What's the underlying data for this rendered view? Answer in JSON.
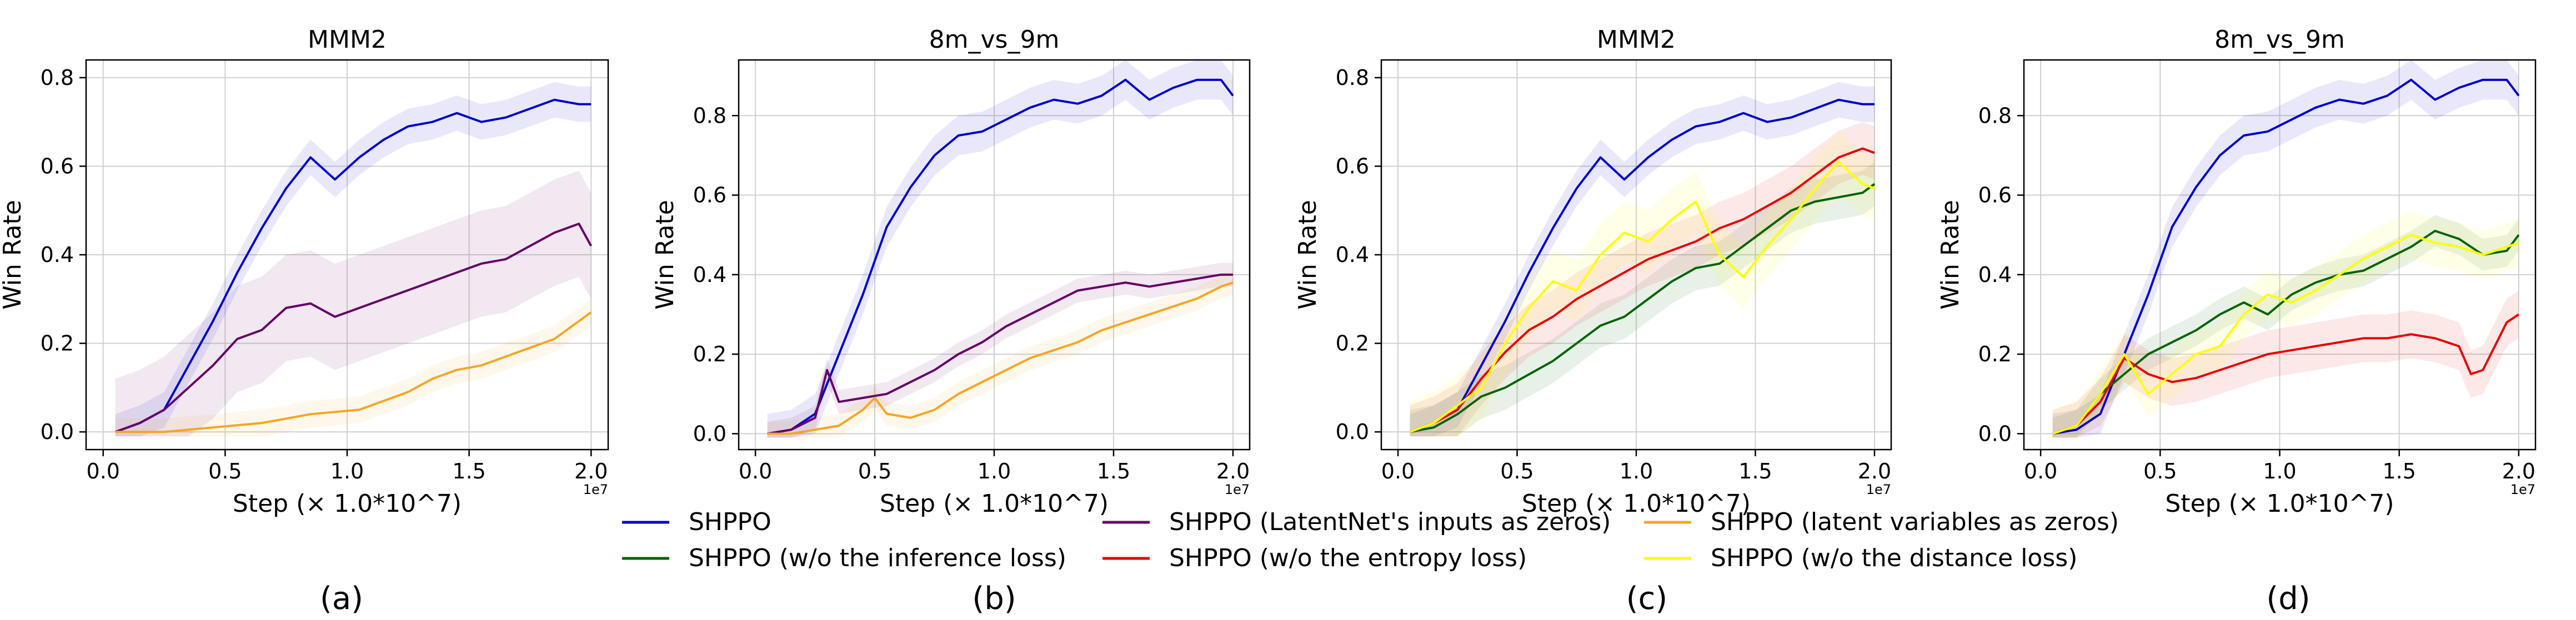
{
  "legend": [
    {
      "name": "SHPPO",
      "color": "#0000cc"
    },
    {
      "name": "SHPPO (w/o the inference loss)",
      "color": "#006400"
    },
    {
      "name": "SHPPO (LatentNet's inputs as zeros)",
      "color": "#660066"
    },
    {
      "name": "SHPPO (w/o the entropy loss)",
      "color": "#e60000"
    },
    {
      "name": "SHPPO (latent variables as zeros)",
      "color": "#f5a623"
    },
    {
      "name": "SHPPO (w/o the distance loss)",
      "color": "#ffff00"
    }
  ],
  "chart_data": [
    {
      "type": "line",
      "caption": "(a)",
      "title": "MMM2",
      "xlabel": "Step (× 1.0*10^7)",
      "ylabel": "Win Rate",
      "x_exponent": "1e7",
      "xlim": [
        -0.07,
        2.07
      ],
      "ylim": [
        -0.04,
        0.84
      ],
      "xticks": [
        "0.0",
        "0.5",
        "1.0",
        "1.5",
        "2.0"
      ],
      "yticks": [
        "0.0",
        "0.2",
        "0.4",
        "0.6",
        "0.8"
      ],
      "series": [
        {
          "name": "SHPPO",
          "color": "#0000cc",
          "band": 0.04,
          "x": [
            0.05,
            0.15,
            0.25,
            0.35,
            0.45,
            0.55,
            0.65,
            0.75,
            0.85,
            0.95,
            1.05,
            1.15,
            1.25,
            1.35,
            1.45,
            1.55,
            1.65,
            1.75,
            1.85,
            1.95,
            2.0
          ],
          "y": [
            0.0,
            0.02,
            0.05,
            0.15,
            0.25,
            0.36,
            0.46,
            0.55,
            0.62,
            0.57,
            0.62,
            0.66,
            0.69,
            0.7,
            0.72,
            0.7,
            0.71,
            0.73,
            0.75,
            0.74,
            0.74
          ]
        },
        {
          "name": "SHPPO (LatentNet's inputs as zeros)",
          "color": "#660066",
          "band": 0.12,
          "x": [
            0.05,
            0.15,
            0.25,
            0.35,
            0.45,
            0.55,
            0.65,
            0.75,
            0.85,
            0.95,
            1.05,
            1.15,
            1.25,
            1.35,
            1.45,
            1.55,
            1.65,
            1.75,
            1.85,
            1.95,
            2.0
          ],
          "y": [
            0.0,
            0.02,
            0.05,
            0.1,
            0.15,
            0.21,
            0.23,
            0.28,
            0.29,
            0.26,
            0.28,
            0.3,
            0.32,
            0.34,
            0.36,
            0.38,
            0.39,
            0.42,
            0.45,
            0.47,
            0.42
          ]
        },
        {
          "name": "SHPPO (latent variables as zeros)",
          "color": "#f5a623",
          "band": 0.03,
          "x": [
            0.05,
            0.15,
            0.25,
            0.35,
            0.45,
            0.55,
            0.65,
            0.75,
            0.85,
            0.95,
            1.05,
            1.15,
            1.25,
            1.35,
            1.45,
            1.55,
            1.65,
            1.75,
            1.85,
            1.95,
            2.0
          ],
          "y": [
            0.0,
            0.0,
            0.0,
            0.005,
            0.01,
            0.015,
            0.02,
            0.03,
            0.04,
            0.045,
            0.05,
            0.07,
            0.09,
            0.12,
            0.14,
            0.15,
            0.17,
            0.19,
            0.21,
            0.25,
            0.27
          ]
        }
      ]
    },
    {
      "type": "line",
      "caption": "(b)",
      "title": "8m_vs_9m",
      "xlabel": "Step (× 1.0*10^7)",
      "ylabel": "Win Rate",
      "x_exponent": "1e7",
      "xlim": [
        -0.07,
        2.07
      ],
      "ylim": [
        -0.04,
        0.94
      ],
      "xticks": [
        "0.0",
        "0.5",
        "1.0",
        "1.5",
        "2.0"
      ],
      "yticks": [
        "0.0",
        "0.2",
        "0.4",
        "0.6",
        "0.8"
      ],
      "series": [
        {
          "name": "SHPPO",
          "color": "#0000cc",
          "band": 0.05,
          "x": [
            0.05,
            0.15,
            0.25,
            0.35,
            0.45,
            0.55,
            0.65,
            0.75,
            0.85,
            0.95,
            1.05,
            1.15,
            1.25,
            1.35,
            1.45,
            1.55,
            1.65,
            1.75,
            1.85,
            1.95,
            2.0
          ],
          "y": [
            0.0,
            0.01,
            0.05,
            0.2,
            0.35,
            0.52,
            0.62,
            0.7,
            0.75,
            0.76,
            0.79,
            0.82,
            0.84,
            0.83,
            0.85,
            0.89,
            0.84,
            0.87,
            0.89,
            0.89,
            0.85
          ]
        },
        {
          "name": "SHPPO (LatentNet's inputs as zeros)",
          "color": "#660066",
          "band": 0.03,
          "x": [
            0.05,
            0.15,
            0.25,
            0.3,
            0.35,
            0.45,
            0.55,
            0.65,
            0.75,
            0.85,
            0.95,
            1.05,
            1.15,
            1.25,
            1.35,
            1.45,
            1.55,
            1.65,
            1.75,
            1.85,
            1.95,
            2.0
          ],
          "y": [
            0.0,
            0.01,
            0.04,
            0.16,
            0.08,
            0.09,
            0.1,
            0.13,
            0.16,
            0.2,
            0.23,
            0.27,
            0.3,
            0.33,
            0.36,
            0.37,
            0.38,
            0.37,
            0.38,
            0.39,
            0.4,
            0.4
          ]
        },
        {
          "name": "SHPPO (latent variables as zeros)",
          "color": "#f5a623",
          "band": 0.03,
          "x": [
            0.05,
            0.15,
            0.25,
            0.35,
            0.45,
            0.5,
            0.55,
            0.65,
            0.75,
            0.85,
            0.95,
            1.05,
            1.15,
            1.25,
            1.35,
            1.45,
            1.55,
            1.65,
            1.75,
            1.85,
            1.95,
            2.0
          ],
          "y": [
            0.0,
            0.0,
            0.01,
            0.02,
            0.06,
            0.09,
            0.05,
            0.04,
            0.06,
            0.1,
            0.13,
            0.16,
            0.19,
            0.21,
            0.23,
            0.26,
            0.28,
            0.3,
            0.32,
            0.34,
            0.37,
            0.38
          ]
        }
      ]
    },
    {
      "type": "line",
      "caption": "(c)",
      "title": "MMM2",
      "xlabel": "Step (× 1.0*10^7)",
      "ylabel": "Win Rate",
      "x_exponent": "1e7",
      "xlim": [
        -0.07,
        2.07
      ],
      "ylim": [
        -0.04,
        0.84
      ],
      "xticks": [
        "0.0",
        "0.5",
        "1.0",
        "1.5",
        "2.0"
      ],
      "yticks": [
        "0.0",
        "0.2",
        "0.4",
        "0.6",
        "0.8"
      ],
      "series": [
        {
          "name": "SHPPO",
          "color": "#0000cc",
          "band": 0.04,
          "x": [
            0.05,
            0.15,
            0.25,
            0.35,
            0.45,
            0.55,
            0.65,
            0.75,
            0.85,
            0.95,
            1.05,
            1.15,
            1.25,
            1.35,
            1.45,
            1.55,
            1.65,
            1.75,
            1.85,
            1.95,
            2.0
          ],
          "y": [
            0.0,
            0.02,
            0.05,
            0.15,
            0.25,
            0.36,
            0.46,
            0.55,
            0.62,
            0.57,
            0.62,
            0.66,
            0.69,
            0.7,
            0.72,
            0.7,
            0.71,
            0.73,
            0.75,
            0.74,
            0.74
          ]
        },
        {
          "name": "SHPPO (w/o the inference loss)",
          "color": "#006400",
          "band": 0.05,
          "x": [
            0.05,
            0.15,
            0.25,
            0.35,
            0.45,
            0.55,
            0.65,
            0.75,
            0.85,
            0.95,
            1.05,
            1.15,
            1.25,
            1.35,
            1.45,
            1.55,
            1.65,
            1.75,
            1.85,
            1.95,
            2.0
          ],
          "y": [
            0.0,
            0.01,
            0.04,
            0.08,
            0.1,
            0.13,
            0.16,
            0.2,
            0.24,
            0.26,
            0.3,
            0.34,
            0.37,
            0.38,
            0.42,
            0.46,
            0.5,
            0.52,
            0.53,
            0.54,
            0.56
          ]
        },
        {
          "name": "SHPPO (w/o the entropy loss)",
          "color": "#e60000",
          "band": 0.06,
          "x": [
            0.05,
            0.15,
            0.25,
            0.35,
            0.45,
            0.55,
            0.65,
            0.75,
            0.85,
            0.95,
            1.05,
            1.15,
            1.25,
            1.35,
            1.45,
            1.55,
            1.65,
            1.75,
            1.85,
            1.95,
            2.0
          ],
          "y": [
            0.0,
            0.02,
            0.05,
            0.12,
            0.18,
            0.23,
            0.26,
            0.3,
            0.33,
            0.36,
            0.39,
            0.41,
            0.43,
            0.46,
            0.48,
            0.51,
            0.54,
            0.58,
            0.62,
            0.64,
            0.63
          ]
        },
        {
          "name": "SHPPO (w/o the distance loss)",
          "color": "#ffff00",
          "band": 0.07,
          "x": [
            0.05,
            0.15,
            0.25,
            0.35,
            0.45,
            0.55,
            0.65,
            0.75,
            0.85,
            0.95,
            1.05,
            1.15,
            1.25,
            1.35,
            1.45,
            1.55,
            1.65,
            1.75,
            1.85,
            1.95,
            2.0
          ],
          "y": [
            0.0,
            0.02,
            0.06,
            0.1,
            0.2,
            0.28,
            0.34,
            0.32,
            0.4,
            0.45,
            0.43,
            0.48,
            0.52,
            0.4,
            0.35,
            0.42,
            0.48,
            0.55,
            0.61,
            0.56,
            0.55
          ]
        }
      ]
    },
    {
      "type": "line",
      "caption": "(d)",
      "title": "8m_vs_9m",
      "xlabel": "Step (× 1.0*10^7)",
      "ylabel": "Win Rate",
      "x_exponent": "1e7",
      "xlim": [
        -0.07,
        2.07
      ],
      "ylim": [
        -0.04,
        0.94
      ],
      "xticks": [
        "0.0",
        "0.5",
        "1.0",
        "1.5",
        "2.0"
      ],
      "yticks": [
        "0.0",
        "0.2",
        "0.4",
        "0.6",
        "0.8"
      ],
      "series": [
        {
          "name": "SHPPO",
          "color": "#0000cc",
          "band": 0.05,
          "x": [
            0.05,
            0.15,
            0.25,
            0.35,
            0.45,
            0.55,
            0.65,
            0.75,
            0.85,
            0.95,
            1.05,
            1.15,
            1.25,
            1.35,
            1.45,
            1.55,
            1.65,
            1.75,
            1.85,
            1.95,
            2.0
          ],
          "y": [
            0.0,
            0.01,
            0.05,
            0.2,
            0.35,
            0.52,
            0.62,
            0.7,
            0.75,
            0.76,
            0.79,
            0.82,
            0.84,
            0.83,
            0.85,
            0.89,
            0.84,
            0.87,
            0.89,
            0.89,
            0.85
          ]
        },
        {
          "name": "SHPPO (w/o the inference loss)",
          "color": "#006400",
          "band": 0.04,
          "x": [
            0.05,
            0.15,
            0.25,
            0.35,
            0.45,
            0.55,
            0.65,
            0.75,
            0.85,
            0.95,
            1.05,
            1.15,
            1.25,
            1.35,
            1.45,
            1.55,
            1.65,
            1.75,
            1.85,
            1.95,
            2.0
          ],
          "y": [
            0.0,
            0.02,
            0.1,
            0.15,
            0.2,
            0.23,
            0.26,
            0.3,
            0.33,
            0.3,
            0.35,
            0.38,
            0.4,
            0.41,
            0.44,
            0.47,
            0.51,
            0.49,
            0.45,
            0.46,
            0.5
          ]
        },
        {
          "name": "SHPPO (w/o the entropy loss)",
          "color": "#e60000",
          "band": 0.06,
          "x": [
            0.05,
            0.15,
            0.25,
            0.35,
            0.45,
            0.55,
            0.65,
            0.75,
            0.85,
            0.95,
            1.05,
            1.15,
            1.25,
            1.35,
            1.45,
            1.55,
            1.65,
            1.75,
            1.8,
            1.85,
            1.95,
            2.0
          ],
          "y": [
            0.0,
            0.02,
            0.08,
            0.19,
            0.15,
            0.13,
            0.14,
            0.16,
            0.18,
            0.2,
            0.21,
            0.22,
            0.23,
            0.24,
            0.24,
            0.25,
            0.24,
            0.22,
            0.15,
            0.16,
            0.28,
            0.3
          ]
        },
        {
          "name": "SHPPO (w/o the distance loss)",
          "color": "#ffff00",
          "band": 0.06,
          "x": [
            0.05,
            0.15,
            0.25,
            0.35,
            0.45,
            0.55,
            0.65,
            0.75,
            0.85,
            0.95,
            1.05,
            1.15,
            1.25,
            1.35,
            1.45,
            1.55,
            1.65,
            1.75,
            1.85,
            1.95,
            2.0
          ],
          "y": [
            0.0,
            0.02,
            0.1,
            0.2,
            0.1,
            0.15,
            0.2,
            0.22,
            0.3,
            0.35,
            0.33,
            0.36,
            0.4,
            0.44,
            0.47,
            0.5,
            0.48,
            0.47,
            0.45,
            0.47,
            0.48
          ]
        }
      ]
    }
  ]
}
